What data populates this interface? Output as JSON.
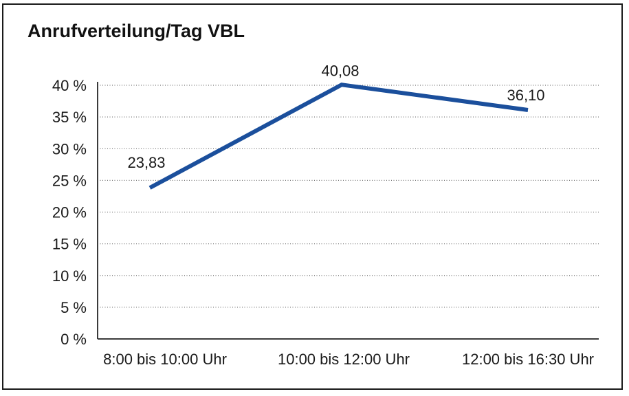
{
  "title": "Anrufverteilung/Tag VBL",
  "chart_data": {
    "type": "line",
    "title": "Anrufverteilung/Tag VBL",
    "categories": [
      "8:00 bis 10:00 Uhr",
      "10:00 bis 12:00 Uhr",
      "12:00 bis 16:30 Uhr"
    ],
    "series": [
      {
        "name": "Anrufverteilung",
        "values": [
          23.83,
          40.08,
          36.1
        ]
      }
    ],
    "value_labels": [
      "23,83",
      "40,08",
      "36,10"
    ],
    "ytick_values": [
      0,
      5,
      10,
      15,
      20,
      25,
      30,
      35,
      40
    ],
    "ytick_labels": [
      "0 %",
      "5 %",
      "10 %",
      "15 %",
      "20 %",
      "25 %",
      "30 %",
      "35 %",
      "40 %"
    ],
    "ylim": [
      0,
      40
    ],
    "xlabel": "",
    "ylabel": "",
    "legend": "none",
    "grid": "horizontal-dotted",
    "series_color": "#1b4f9c",
    "axis_color": "#3a3a3a",
    "grid_color": "#787878",
    "text_color": "#1a1a1a"
  }
}
